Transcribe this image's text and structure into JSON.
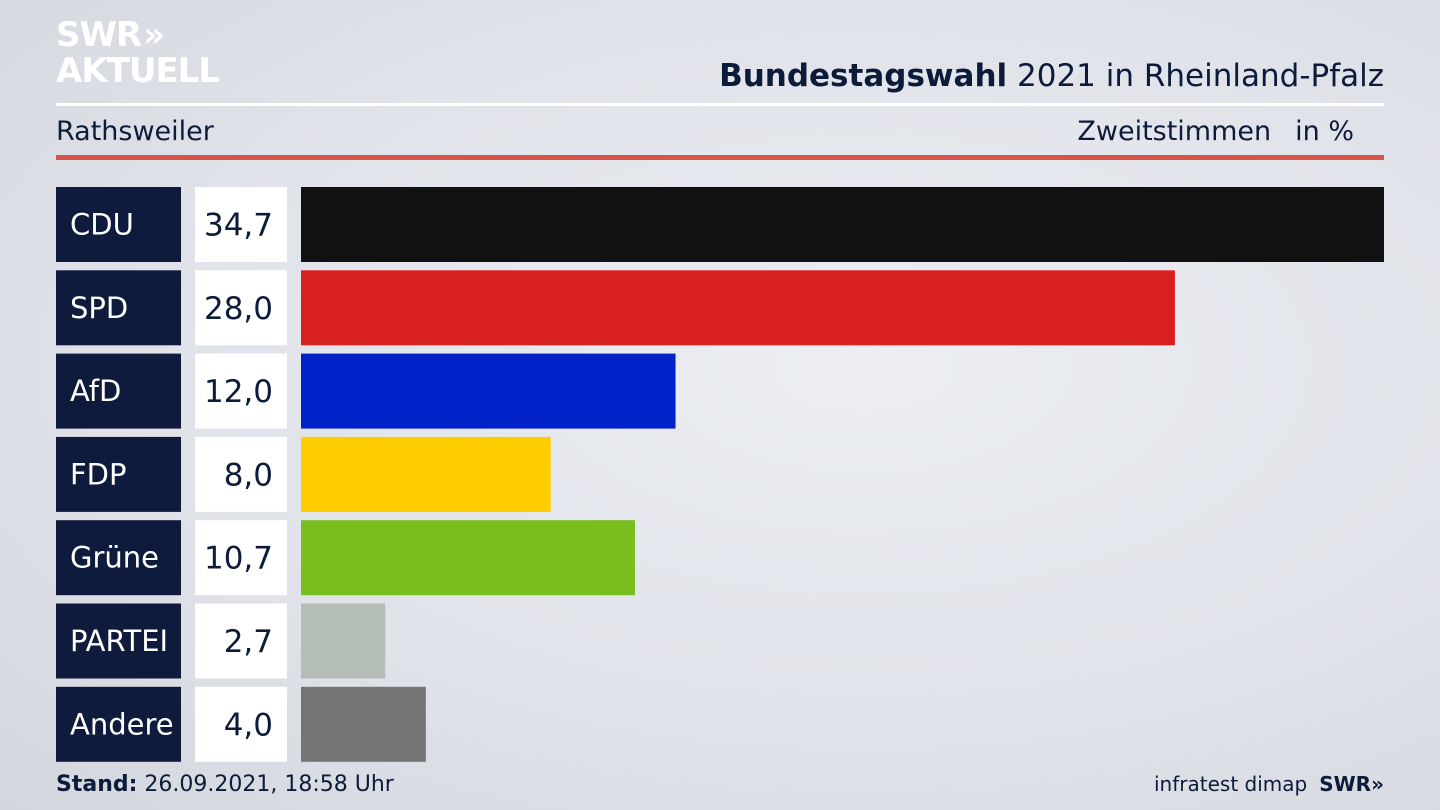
{
  "brand": {
    "line1": "SWR",
    "line2": "AKTUELL",
    "chevrons": "»"
  },
  "header": {
    "title_bold": "Bundestagswahl",
    "title_rest": " 2021 in Rheinland-Pfalz",
    "location": "Rathsweiler",
    "measure": "Zweitstimmen",
    "unit": "in %"
  },
  "footer": {
    "stand_label": "Stand:",
    "stand_value": " 26.09.2021, 18:58 Uhr",
    "source": "infratest dimap",
    "brand": "SWR»"
  },
  "chart_data": {
    "type": "bar",
    "orientation": "horizontal",
    "title": "Bundestagswahl 2021 in Rheinland-Pfalz",
    "subtitle": "Rathsweiler",
    "ylabel": "Zweitstimmen in %",
    "xlim": [
      0,
      34.7
    ],
    "grid": false,
    "categories": [
      "CDU",
      "SPD",
      "AfD",
      "FDP",
      "Grüne",
      "PARTEI",
      "Andere"
    ],
    "values": [
      34.7,
      28.0,
      12.0,
      8.0,
      10.7,
      2.7,
      4.0
    ],
    "value_labels": [
      "34,7",
      "28,0",
      "12,0",
      "8,0",
      "10,7",
      "2,7",
      "4,0"
    ],
    "colors": [
      "#111111",
      "#d92020",
      "#0022c8",
      "#ffcc00",
      "#78be1e",
      "#b4bdb6",
      "#747474"
    ]
  }
}
